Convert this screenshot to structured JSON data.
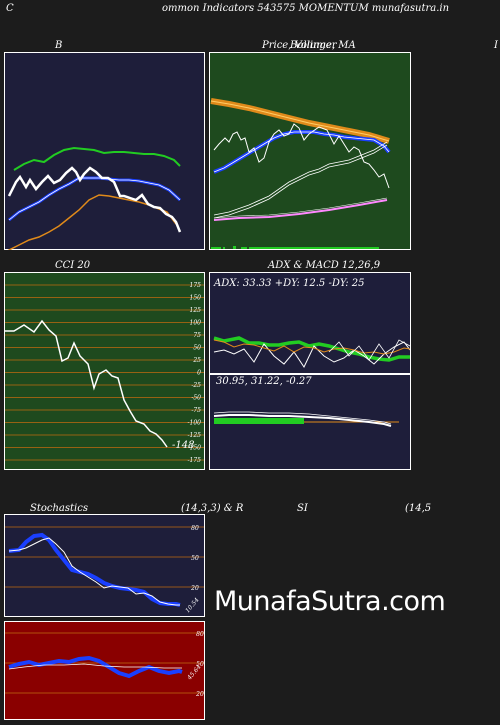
{
  "header": {
    "corner_left": "C",
    "title": "ommon  Indicators 543575 MOMENTUM munafasutra.in",
    "corner_right": "I"
  },
  "bollinger": {
    "label": "B"
  },
  "price": {
    "label": "Price,  Volume, MA",
    "overlay": "Bollinger"
  },
  "cci": {
    "label": "CCI 20",
    "last_value": "-148"
  },
  "adx": {
    "label": "ADX  & MACD 12,26,9",
    "values": "ADX: 33.33 +DY: 12.5 -DY: 25"
  },
  "macd": {
    "values": "30.95,  31.22, -0.27"
  },
  "stoch": {
    "label": "Stochastics",
    "params": "(14,3,3) & R",
    "last_value": "10.54"
  },
  "rsi": {
    "label": "SI",
    "params": "(14,5",
    "last_value": "45.64"
  },
  "watermark": "MunafaSutra.com",
  "colors": {
    "navy_panel": "#1e1e3a",
    "green_panel": "#1e4a1e",
    "red_panel": "#8a0000",
    "blue_line": "#1a3fff",
    "green_line": "#22cc22",
    "orange_line": "#e08a1a",
    "pink_line": "#ff88ff",
    "grid_orange": "#c06a10"
  },
  "chart_data": [
    {
      "type": "line",
      "title": "B",
      "series": [
        {
          "values": [
            140,
            145,
            150,
            148,
            155,
            150,
            152,
            158,
            150,
            147,
            146,
            144,
            141,
            138,
            135,
            128
          ]
        },
        {
          "values": [
            142,
            145,
            146,
            150,
            152,
            155,
            157,
            158,
            157,
            156,
            156,
            154,
            150,
            146,
            144,
            140
          ]
        },
        {
          "values": [
            156,
            158,
            160,
            163,
            167,
            168,
            168,
            167,
            166,
            165,
            165,
            164,
            163,
            161,
            159,
            157
          ]
        },
        {
          "values": [
            128,
            130,
            131,
            134,
            137,
            140,
            143,
            146,
            148,
            148,
            147,
            146,
            144,
            142,
            140,
            138
          ]
        }
      ]
    },
    {
      "type": "line",
      "title": "Price,  Volume, MA",
      "series": [
        {
          "values": [
            150,
            148,
            156,
            152,
            162,
            158,
            150,
            145,
            140,
            148,
            155,
            150,
            140,
            150,
            143,
            137,
            133,
            132,
            132,
            125
          ]
        },
        {
          "values": [
            132,
            137,
            142,
            146,
            150,
            153,
            155,
            157,
            157,
            157,
            156,
            156,
            155,
            153,
            152,
            150,
            148,
            147,
            146,
            143
          ]
        },
        {
          "values": [
            163,
            162,
            161,
            160,
            159,
            157,
            156,
            154,
            152,
            151,
            150,
            149,
            147,
            146,
            145,
            144,
            142,
            141,
            140,
            139
          ]
        }
      ]
    },
    {
      "type": "line",
      "title": "CCI 20",
      "ylim": [
        -175,
        175
      ],
      "yticks": [
        175,
        150,
        125,
        100,
        75,
        50,
        25,
        0,
        -25,
        -50,
        -75,
        -100,
        -125,
        -150,
        -175
      ],
      "series": [
        {
          "values": [
            105,
            105,
            98,
            112,
            100,
            50,
            58,
            90,
            30,
            5,
            -15,
            -10,
            -60,
            -80,
            -90,
            -115,
            -148
          ]
        }
      ]
    },
    {
      "type": "line",
      "title": "ADX & MACD 12,26,9",
      "series": [
        {
          "values": [
            35,
            36,
            35,
            35,
            34,
            33,
            34,
            35,
            36,
            36,
            36,
            35,
            35,
            34,
            33,
            33,
            33,
            32,
            32,
            33
          ]
        },
        {
          "values": [
            15,
            12,
            15,
            14,
            11,
            12,
            16,
            12,
            12,
            10,
            13,
            11,
            12,
            15,
            13,
            12,
            13,
            12,
            14,
            12.5
          ]
        },
        {
          "values": [
            22,
            24,
            20,
            26,
            20,
            24,
            22,
            27,
            25,
            22,
            24,
            20,
            27,
            23,
            30,
            22,
            27,
            22,
            28,
            25
          ]
        }
      ]
    },
    {
      "type": "line",
      "title": "Stochastics",
      "ylim": [
        0,
        100
      ],
      "yticks": [
        80,
        50,
        20
      ],
      "series": [
        {
          "values": [
            75,
            75,
            82,
            84,
            70,
            50,
            38,
            35,
            30,
            25,
            22,
            20,
            22,
            20,
            15,
            12,
            12,
            10.54
          ]
        }
      ]
    },
    {
      "type": "line",
      "title": "SI",
      "ylim": [
        0,
        100
      ],
      "yticks": [
        80,
        50,
        20
      ],
      "series": [
        {
          "values": [
            45,
            48,
            50,
            48,
            50,
            50,
            52,
            50,
            53,
            54,
            50,
            43,
            38,
            42,
            48,
            44,
            40,
            45,
            45.64
          ]
        },
        {
          "values": [
            47,
            47,
            47,
            47,
            47,
            47,
            47,
            47,
            47,
            47,
            47,
            47,
            47,
            47,
            47,
            47,
            47,
            47,
            47
          ]
        }
      ]
    }
  ]
}
